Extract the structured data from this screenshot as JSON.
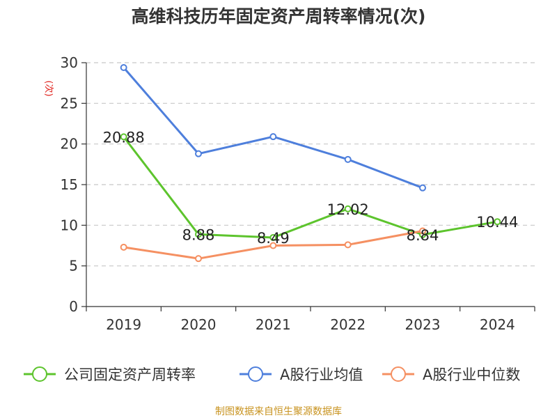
{
  "chart_data": {
    "type": "line",
    "title": "高维科技历年固定资产周转率情况(次)",
    "ylabel": "(次)",
    "xlabel": "",
    "categories": [
      "2019",
      "2020",
      "2021",
      "2022",
      "2023",
      "2024"
    ],
    "ylim": [
      0,
      30
    ],
    "yticks": [
      0,
      5,
      10,
      15,
      20,
      25,
      30
    ],
    "grid": "horizontal-dashed",
    "legend_position": "bottom",
    "series": [
      {
        "name": "公司固定资产周转率",
        "color": "#5dc42d",
        "values": [
          20.88,
          8.88,
          8.49,
          12.02,
          8.84,
          10.44
        ],
        "labels": [
          "20.88",
          "8.88",
          "8.49",
          "12.02",
          "8.84",
          "10.44"
        ]
      },
      {
        "name": "A股行业均值",
        "color": "#4e7fdc",
        "values": [
          29.4,
          18.8,
          20.9,
          18.1,
          14.6,
          null
        ]
      },
      {
        "name": "A股行业中位数",
        "color": "#f59062",
        "values": [
          7.3,
          5.9,
          7.5,
          7.6,
          9.3,
          null
        ]
      }
    ]
  },
  "footer": {
    "credit": "制图数据来自恒生聚源数据库"
  }
}
